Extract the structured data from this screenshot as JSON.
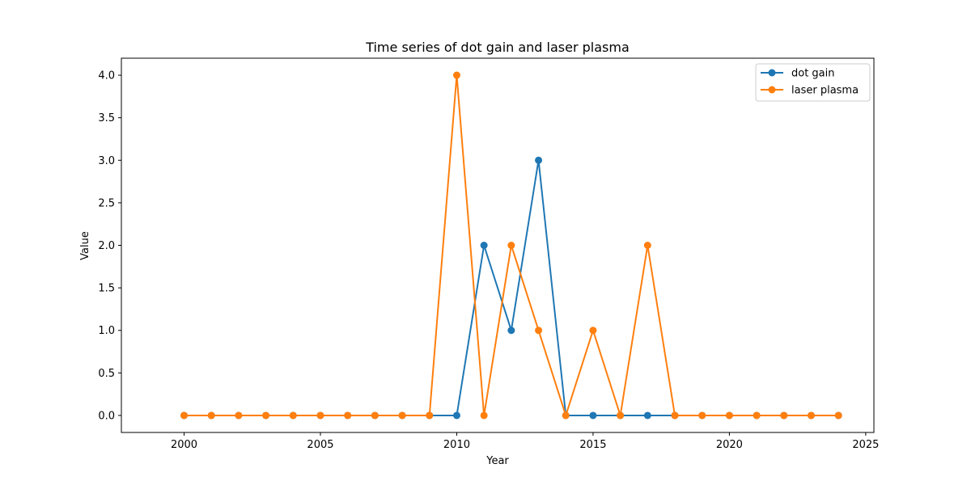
{
  "chart_data": {
    "type": "line",
    "title": "Time series of dot gain and laser plasma",
    "xlabel": "Year",
    "ylabel": "Value",
    "xlim": [
      1997.7,
      2025.3
    ],
    "ylim": [
      -0.2,
      4.2
    ],
    "xticks": [
      2000,
      2005,
      2010,
      2015,
      2020,
      2025
    ],
    "yticks": [
      0.0,
      0.5,
      1.0,
      1.5,
      2.0,
      2.5,
      3.0,
      3.5,
      4.0
    ],
    "grid": false,
    "legend_position": "upper right",
    "x": [
      2000,
      2001,
      2002,
      2003,
      2004,
      2005,
      2006,
      2007,
      2008,
      2009,
      2010,
      2011,
      2012,
      2013,
      2014,
      2015,
      2016,
      2017,
      2018,
      2019,
      2020,
      2021,
      2022,
      2023,
      2024
    ],
    "series": [
      {
        "name": "dot gain",
        "color": "#1f77b4",
        "values": [
          0,
          0,
          0,
          0,
          0,
          0,
          0,
          0,
          0,
          0,
          0,
          2,
          1,
          3,
          0,
          0,
          0,
          0,
          0,
          0,
          0,
          0,
          0,
          0,
          0
        ]
      },
      {
        "name": "laser plasma",
        "color": "#ff7f0e",
        "values": [
          0,
          0,
          0,
          0,
          0,
          0,
          0,
          0,
          0,
          0,
          4,
          0,
          2,
          1,
          0,
          1,
          0,
          2,
          0,
          0,
          0,
          0,
          0,
          0,
          0
        ]
      }
    ]
  }
}
